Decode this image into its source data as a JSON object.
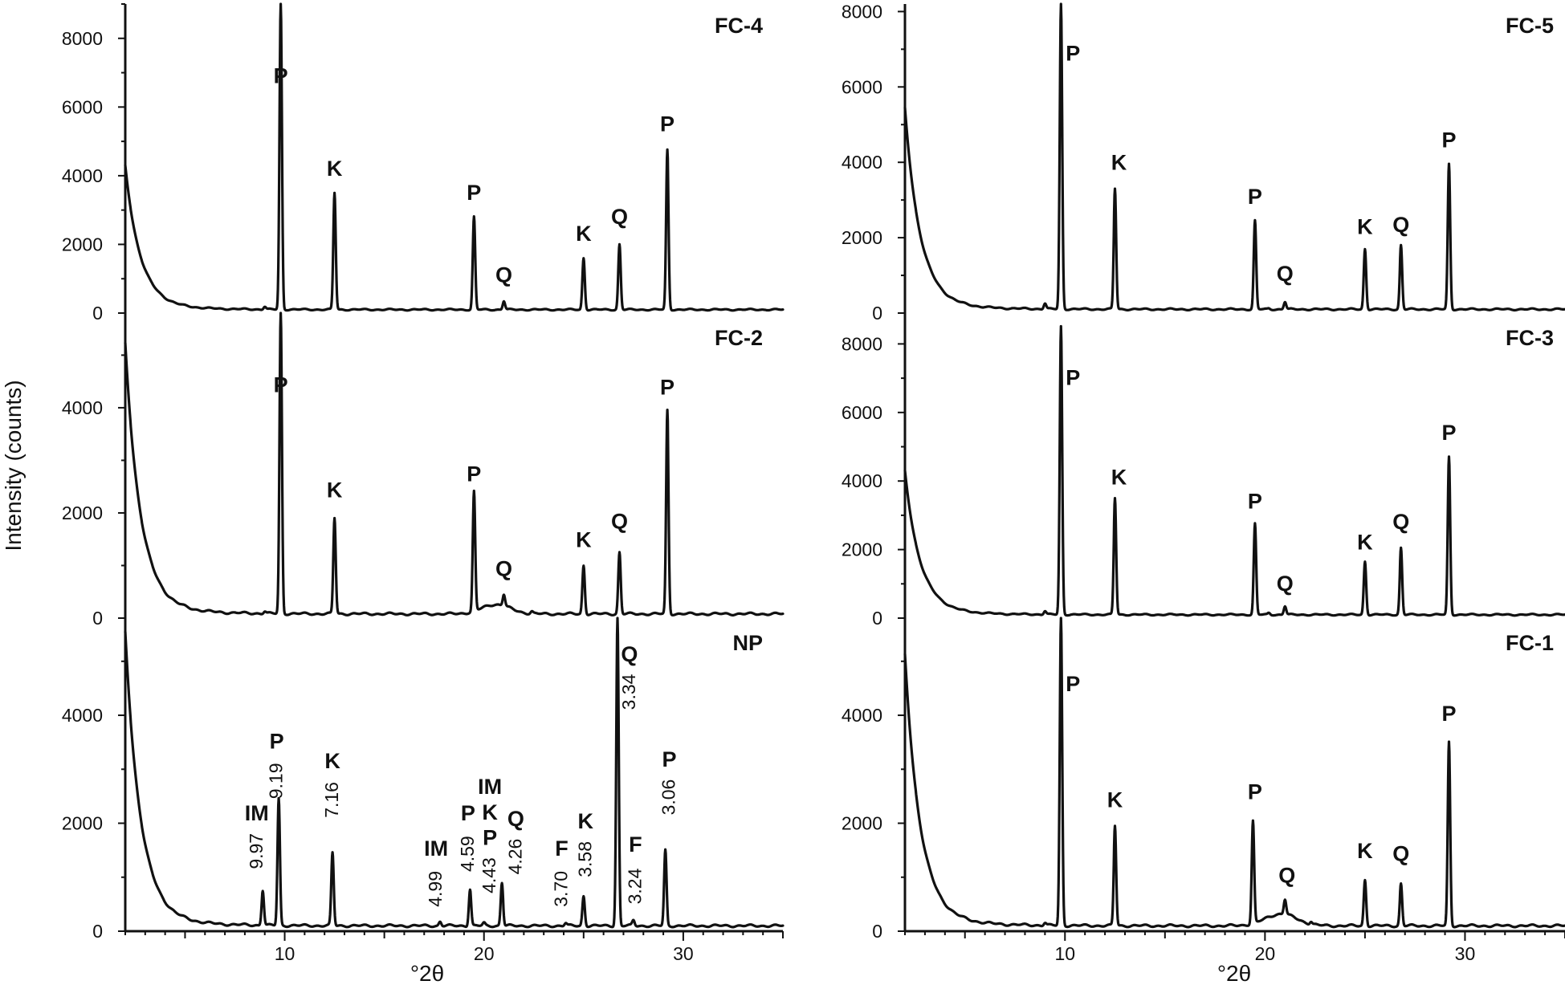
{
  "figure": {
    "ylabel": "Intensity (counts)",
    "xlabel_left": "°2θ",
    "xlabel_right": "°2θ"
  },
  "chart_data": [
    {
      "type": "line",
      "title": "FC-4",
      "xlim": [
        2,
        35
      ],
      "ylim": [
        0,
        9000
      ],
      "yticks": [
        0,
        2000,
        4000,
        6000,
        8000
      ],
      "xticks": [],
      "background": {
        "start": 4100,
        "mid": 1200,
        "tail": 100
      },
      "peaks": [
        {
          "x": 9.0,
          "y": 180
        },
        {
          "x": 9.8,
          "y": 9000
        },
        {
          "x": 12.5,
          "y": 3500
        },
        {
          "x": 19.5,
          "y": 2800
        },
        {
          "x": 21.0,
          "y": 350
        },
        {
          "x": 25.0,
          "y": 1600
        },
        {
          "x": 26.8,
          "y": 2000
        },
        {
          "x": 29.2,
          "y": 4750
        }
      ],
      "labels": [
        {
          "phase": "P",
          "x": 9.8,
          "y": 6700
        },
        {
          "phase": "K",
          "x": 12.5,
          "y": 4000
        },
        {
          "phase": "P",
          "x": 19.5,
          "y": 3300
        },
        {
          "phase": "Q",
          "x": 21.0,
          "y": 900
        },
        {
          "phase": "K",
          "x": 25.0,
          "y": 2100
        },
        {
          "phase": "Q",
          "x": 26.8,
          "y": 2600
        },
        {
          "phase": "P",
          "x": 29.2,
          "y": 5300
        }
      ]
    },
    {
      "type": "line",
      "title": "FC-2",
      "xlim": [
        2,
        35
      ],
      "ylim": [
        0,
        5800
      ],
      "yticks": [
        0,
        2000,
        4000
      ],
      "xticks": [],
      "background": {
        "start": 5000,
        "mid": 1400,
        "tail": 80
      },
      "hump": {
        "center": 20.6,
        "width": 1.0,
        "height": 180
      },
      "peaks": [
        {
          "x": 9.0,
          "y": 120
        },
        {
          "x": 9.8,
          "y": 5800
        },
        {
          "x": 12.5,
          "y": 1900
        },
        {
          "x": 19.5,
          "y": 2350
        },
        {
          "x": 21.0,
          "y": 300
        },
        {
          "x": 22.4,
          "y": 120
        },
        {
          "x": 25.0,
          "y": 1000
        },
        {
          "x": 26.8,
          "y": 1250
        },
        {
          "x": 29.2,
          "y": 3950
        }
      ],
      "labels": [
        {
          "phase": "P",
          "x": 9.8,
          "y": 4300
        },
        {
          "phase": "K",
          "x": 12.5,
          "y": 2300
        },
        {
          "phase": "P",
          "x": 19.5,
          "y": 2600
        },
        {
          "phase": "Q",
          "x": 21.0,
          "y": 800
        },
        {
          "phase": "K",
          "x": 25.0,
          "y": 1350
        },
        {
          "phase": "Q",
          "x": 26.8,
          "y": 1700
        },
        {
          "phase": "P",
          "x": 29.2,
          "y": 4250
        }
      ]
    },
    {
      "type": "line",
      "title": "NP",
      "xlim": [
        2,
        35
      ],
      "ylim": [
        0,
        5800
      ],
      "yticks": [
        0,
        2000,
        4000
      ],
      "xticks": [
        10,
        20,
        30
      ],
      "background": {
        "start": 5300,
        "mid": 1500,
        "tail": 100
      },
      "peaks": [
        {
          "x": 8.9,
          "y": 750
        },
        {
          "x": 9.7,
          "y": 2450
        },
        {
          "x": 12.4,
          "y": 1450
        },
        {
          "x": 17.8,
          "y": 180
        },
        {
          "x": 19.3,
          "y": 780
        },
        {
          "x": 20.0,
          "y": 150
        },
        {
          "x": 20.9,
          "y": 900
        },
        {
          "x": 24.1,
          "y": 150
        },
        {
          "x": 25.0,
          "y": 650
        },
        {
          "x": 26.7,
          "y": 5800
        },
        {
          "x": 27.5,
          "y": 200
        },
        {
          "x": 29.1,
          "y": 1500
        }
      ],
      "labels": [
        {
          "phase": "IM",
          "x": 8.6,
          "y": 2050
        },
        {
          "phase": "P",
          "x": 9.6,
          "y": 3380
        },
        {
          "phase": "K",
          "x": 12.4,
          "y": 3020
        },
        {
          "phase": "IM",
          "x": 17.6,
          "y": 1400
        },
        {
          "phase": "P",
          "x": 19.2,
          "y": 2050
        },
        {
          "phase": "IM",
          "x": 20.3,
          "y": 2540
        },
        {
          "phase": "K",
          "x": 20.3,
          "y": 2070
        },
        {
          "phase": "P",
          "x": 20.3,
          "y": 1600
        },
        {
          "phase": "Q",
          "x": 21.6,
          "y": 1950
        },
        {
          "phase": "F",
          "x": 23.9,
          "y": 1400
        },
        {
          "phase": "K",
          "x": 25.1,
          "y": 1900
        },
        {
          "phase": "F",
          "x": 27.6,
          "y": 1470
        },
        {
          "phase": "Q",
          "x": 27.3,
          "y": 5000
        },
        {
          "phase": "P",
          "x": 29.3,
          "y": 3050
        }
      ],
      "d_spacings": [
        {
          "text": "9.97",
          "x": 8.6,
          "y": 1150
        },
        {
          "text": "9.19",
          "x": 9.6,
          "y": 2450
        },
        {
          "text": "7.16",
          "x": 12.4,
          "y": 2100
        },
        {
          "text": "4.99",
          "x": 17.6,
          "y": 450
        },
        {
          "text": "4.59",
          "x": 19.2,
          "y": 1100
        },
        {
          "text": "4.43",
          "x": 20.3,
          "y": 700
        },
        {
          "text": "4.26",
          "x": 21.6,
          "y": 1050
        },
        {
          "text": "3.70",
          "x": 23.9,
          "y": 450
        },
        {
          "text": "3.58",
          "x": 25.1,
          "y": 1000
        },
        {
          "text": "3.24",
          "x": 27.6,
          "y": 500
        },
        {
          "text": "3.34",
          "x": 27.3,
          "y": 4100
        },
        {
          "text": "3.06",
          "x": 29.3,
          "y": 2150
        }
      ]
    },
    {
      "type": "line",
      "title": "FC-5",
      "xlim": [
        2,
        35
      ],
      "ylim": [
        0,
        8200
      ],
      "yticks": [
        0,
        2000,
        4000,
        6000,
        8000
      ],
      "xticks": [],
      "background": {
        "start": 5200,
        "mid": 1500,
        "tail": 100
      },
      "peaks": [
        {
          "x": 9.0,
          "y": 250
        },
        {
          "x": 9.8,
          "y": 8200
        },
        {
          "x": 12.5,
          "y": 3300
        },
        {
          "x": 19.5,
          "y": 2450
        },
        {
          "x": 20.2,
          "y": 120
        },
        {
          "x": 21.0,
          "y": 300
        },
        {
          "x": 25.0,
          "y": 1700
        },
        {
          "x": 26.8,
          "y": 1800
        },
        {
          "x": 29.2,
          "y": 3950
        }
      ],
      "labels": [
        {
          "phase": "P",
          "x": 10.4,
          "y": 6700
        },
        {
          "phase": "K",
          "x": 12.7,
          "y": 3800
        },
        {
          "phase": "P",
          "x": 19.5,
          "y": 2900
        },
        {
          "phase": "Q",
          "x": 21.0,
          "y": 850
        },
        {
          "phase": "K",
          "x": 25.0,
          "y": 2100
        },
        {
          "phase": "Q",
          "x": 26.8,
          "y": 2150
        },
        {
          "phase": "P",
          "x": 29.2,
          "y": 4400
        }
      ]
    },
    {
      "type": "line",
      "title": "FC-3",
      "xlim": [
        2,
        35
      ],
      "ylim": [
        0,
        8900
      ],
      "yticks": [
        0,
        2000,
        4000,
        6000,
        8000
      ],
      "xticks": [],
      "background": {
        "start": 4100,
        "mid": 1200,
        "tail": 100
      },
      "peaks": [
        {
          "x": 9.0,
          "y": 200
        },
        {
          "x": 9.8,
          "y": 8500
        },
        {
          "x": 12.5,
          "y": 3500
        },
        {
          "x": 19.5,
          "y": 2750
        },
        {
          "x": 20.2,
          "y": 150
        },
        {
          "x": 21.0,
          "y": 350
        },
        {
          "x": 25.0,
          "y": 1650
        },
        {
          "x": 26.8,
          "y": 2050
        },
        {
          "x": 29.2,
          "y": 4700
        }
      ],
      "labels": [
        {
          "phase": "P",
          "x": 10.4,
          "y": 6800
        },
        {
          "phase": "K",
          "x": 12.7,
          "y": 3900
        },
        {
          "phase": "P",
          "x": 19.5,
          "y": 3200
        },
        {
          "phase": "Q",
          "x": 21.0,
          "y": 800
        },
        {
          "phase": "K",
          "x": 25.0,
          "y": 2000
        },
        {
          "phase": "Q",
          "x": 26.8,
          "y": 2600
        },
        {
          "phase": "P",
          "x": 29.2,
          "y": 5200
        }
      ]
    },
    {
      "type": "line",
      "title": "FC-1",
      "xlim": [
        2,
        35
      ],
      "ylim": [
        0,
        5800
      ],
      "yticks": [
        0,
        2000,
        4000
      ],
      "xticks": [
        10,
        20,
        30
      ],
      "background": {
        "start": 4900,
        "mid": 1400,
        "tail": 100
      },
      "hump": {
        "center": 20.8,
        "width": 1.1,
        "height": 220
      },
      "peaks": [
        {
          "x": 9.0,
          "y": 150
        },
        {
          "x": 9.8,
          "y": 5800
        },
        {
          "x": 12.5,
          "y": 1950
        },
        {
          "x": 19.4,
          "y": 2000
        },
        {
          "x": 21.0,
          "y": 380
        },
        {
          "x": 22.3,
          "y": 150
        },
        {
          "x": 25.0,
          "y": 950
        },
        {
          "x": 26.8,
          "y": 880
        },
        {
          "x": 29.2,
          "y": 3500
        }
      ],
      "labels": [
        {
          "phase": "P",
          "x": 10.4,
          "y": 4450
        },
        {
          "phase": "K",
          "x": 12.5,
          "y": 2300
        },
        {
          "phase": "P",
          "x": 19.5,
          "y": 2450
        },
        {
          "phase": "Q",
          "x": 21.1,
          "y": 900
        },
        {
          "phase": "K",
          "x": 25.0,
          "y": 1350
        },
        {
          "phase": "Q",
          "x": 26.8,
          "y": 1300
        },
        {
          "phase": "P",
          "x": 29.2,
          "y": 3900
        }
      ]
    }
  ]
}
